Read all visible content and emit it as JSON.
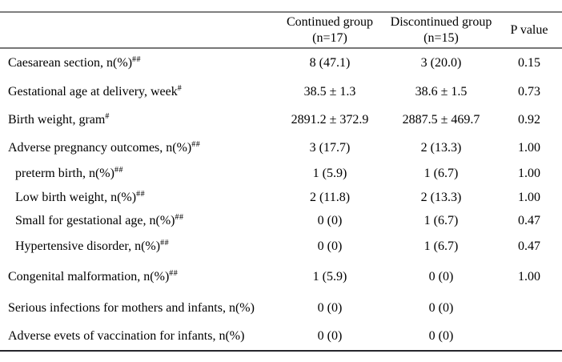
{
  "table": {
    "header": {
      "continued_line1": "Continued group",
      "continued_line2": "(n=17)",
      "discontinued_line1": "Discontinued group",
      "discontinued_line2": "(n=15)",
      "p_value_label": "P value"
    },
    "rows": [
      {
        "label": "Caesarean section, n(%)",
        "footnote": "##",
        "indent": false,
        "continued": "8 (47.1)",
        "discontinued": "3 (20.0)",
        "p_value": "0.15"
      },
      {
        "label": "Gestational age at delivery, week",
        "footnote": "#",
        "indent": false,
        "continued": "38.5 ± 1.3",
        "discontinued": "38.6 ± 1.5",
        "p_value": "0.73"
      },
      {
        "label": "Birth weight, gram",
        "footnote": "#",
        "indent": false,
        "continued": "2891.2 ± 372.9",
        "discontinued": "2887.5 ± 469.7",
        "p_value": "0.92"
      },
      {
        "label": "Adverse pregnancy outcomes, n(%)",
        "footnote": "##",
        "indent": false,
        "continued": "3 (17.7)",
        "discontinued": "2 (13.3)",
        "p_value": "1.00"
      },
      {
        "label": "preterm birth, n(%)",
        "footnote": "##",
        "indent": true,
        "continued": "1 (5.9)",
        "discontinued": "1 (6.7)",
        "p_value": "1.00"
      },
      {
        "label": "Low birth weight, n(%)",
        "footnote": "##",
        "indent": true,
        "continued": "2 (11.8)",
        "discontinued": "2 (13.3)",
        "p_value": "1.00"
      },
      {
        "label": "Small for gestational age, n(%)",
        "footnote": "##",
        "indent": true,
        "continued": "0 (0)",
        "discontinued": "1 (6.7)",
        "p_value": "0.47"
      },
      {
        "label": "Hypertensive disorder, n(%)",
        "footnote": "##",
        "indent": true,
        "continued": "0 (0)",
        "discontinued": "1 (6.7)",
        "p_value": "0.47"
      },
      {
        "label": "Congenital malformation, n(%)",
        "footnote": "##",
        "indent": false,
        "continued": "1 (5.9)",
        "discontinued": "0 (0)",
        "p_value": "1.00"
      },
      {
        "label": "Serious infections for mothers and infants, n(%)",
        "footnote": "",
        "indent": false,
        "continued": "0 (0)",
        "discontinued": "0 (0)",
        "p_value": ""
      },
      {
        "label": "Adverse evets of vaccination for infants, n(%)",
        "footnote": "",
        "indent": false,
        "continued": "0 (0)",
        "discontinued": "0 (0)",
        "p_value": ""
      }
    ],
    "colors": {
      "rule_gray": "#7f7f7f",
      "rule_dark": "#26262c",
      "text": "#000000"
    }
  }
}
